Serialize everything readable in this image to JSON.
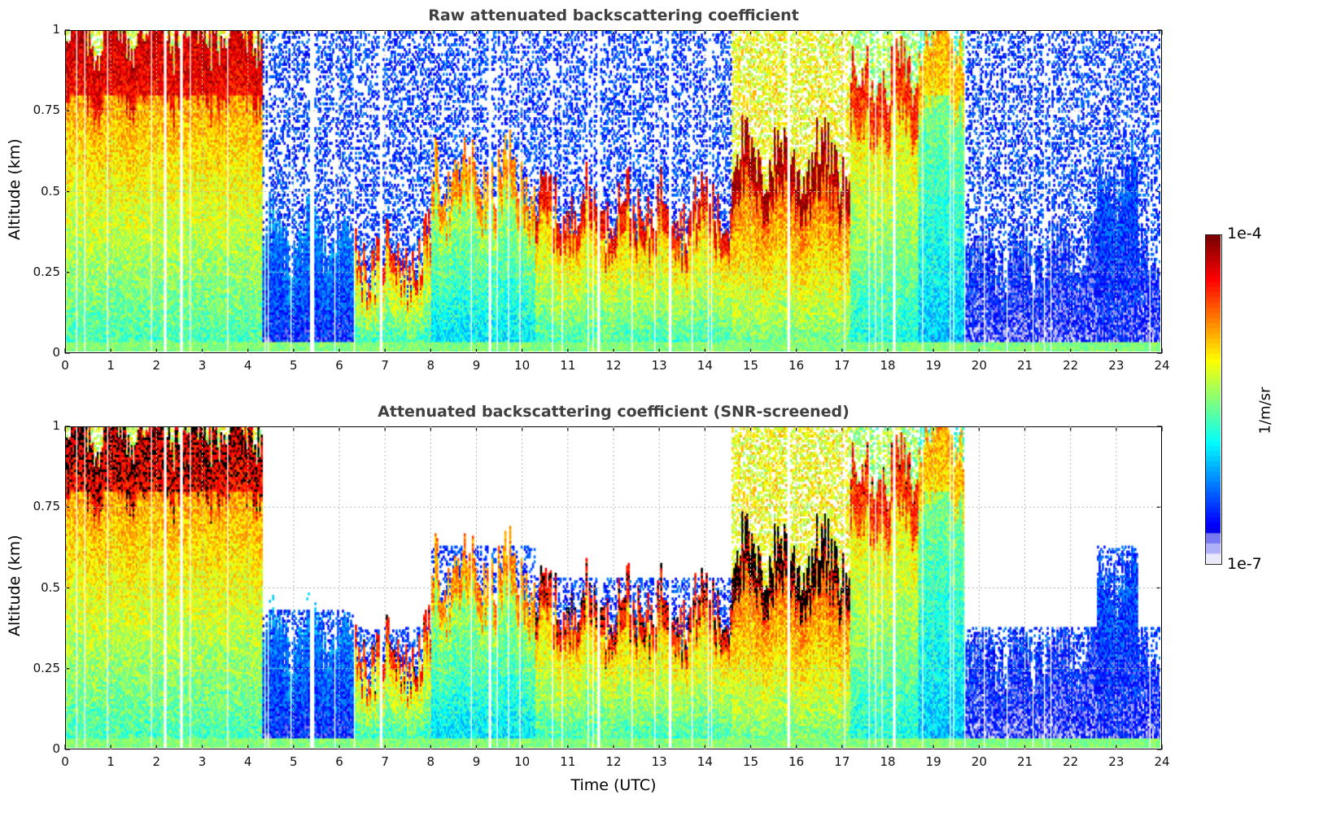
{
  "chart_data": [
    {
      "type": "heatmap",
      "id": "raw",
      "title": "Raw attenuated backscattering coefficient",
      "xlabel": "",
      "ylabel": "Altitude (km)",
      "xlim": [
        0,
        24
      ],
      "ylim": [
        0,
        1
      ],
      "xticks": [
        "0",
        "1",
        "2",
        "3",
        "4",
        "5",
        "6",
        "7",
        "8",
        "9",
        "10",
        "11",
        "12",
        "13",
        "14",
        "15",
        "16",
        "17",
        "18",
        "19",
        "20",
        "21",
        "22",
        "23",
        "24"
      ],
      "yticks": [
        "0",
        "0.25",
        "0.5",
        "0.75",
        "1"
      ],
      "grid": true,
      "screened": false
    },
    {
      "type": "heatmap",
      "id": "screened",
      "title": "Attenuated backscattering coefficient (SNR-screened)",
      "xlabel": "Time (UTC)",
      "ylabel": "Altitude (km)",
      "xlim": [
        0,
        24
      ],
      "ylim": [
        0,
        1
      ],
      "xticks": [
        "0",
        "1",
        "2",
        "3",
        "4",
        "5",
        "6",
        "7",
        "8",
        "9",
        "10",
        "11",
        "12",
        "13",
        "14",
        "15",
        "16",
        "17",
        "18",
        "19",
        "20",
        "21",
        "22",
        "23",
        "24"
      ],
      "yticks": [
        "0",
        "0.25",
        "0.5",
        "0.75",
        "1"
      ],
      "grid": true,
      "screened": true
    }
  ],
  "colorbar": {
    "label": "1/m/sr",
    "max_label": "1e-4",
    "min_label": "1e-7",
    "range": [
      1e-07,
      0.0001
    ],
    "scale": "log",
    "colormap": "jet"
  },
  "regimes": [
    {
      "t0": 0.0,
      "t1": 4.3,
      "top_km": 1.0,
      "level": 0.78,
      "noise_top": false
    },
    {
      "t0": 4.3,
      "t1": 6.3,
      "top_km": 0.35,
      "level": 0.25,
      "noise_top": true
    },
    {
      "t0": 6.3,
      "t1": 8.0,
      "top_km": 0.3,
      "level": 0.72,
      "noise_top": true
    },
    {
      "t0": 8.0,
      "t1": 10.3,
      "top_km": 0.55,
      "level": 0.6,
      "noise_top": true
    },
    {
      "t0": 10.3,
      "t1": 14.6,
      "top_km": 0.45,
      "level": 0.75,
      "noise_top": true
    },
    {
      "t0": 14.6,
      "t1": 17.2,
      "top_km": 0.6,
      "level": 0.85,
      "noise_top": false
    },
    {
      "t0": 17.2,
      "t1": 18.7,
      "top_km": 0.85,
      "level": 0.7,
      "noise_top": false
    },
    {
      "t0": 18.7,
      "t1": 19.7,
      "top_km": 1.0,
      "level": 0.55,
      "noise_top": false
    },
    {
      "t0": 19.7,
      "t1": 22.6,
      "top_km": 0.3,
      "level": 0.15,
      "noise_top": true
    },
    {
      "t0": 22.6,
      "t1": 23.5,
      "top_km": 0.55,
      "level": 0.2,
      "noise_top": true
    },
    {
      "t0": 23.5,
      "t1": 24.0,
      "top_km": 0.3,
      "level": 0.15,
      "noise_top": true
    }
  ]
}
